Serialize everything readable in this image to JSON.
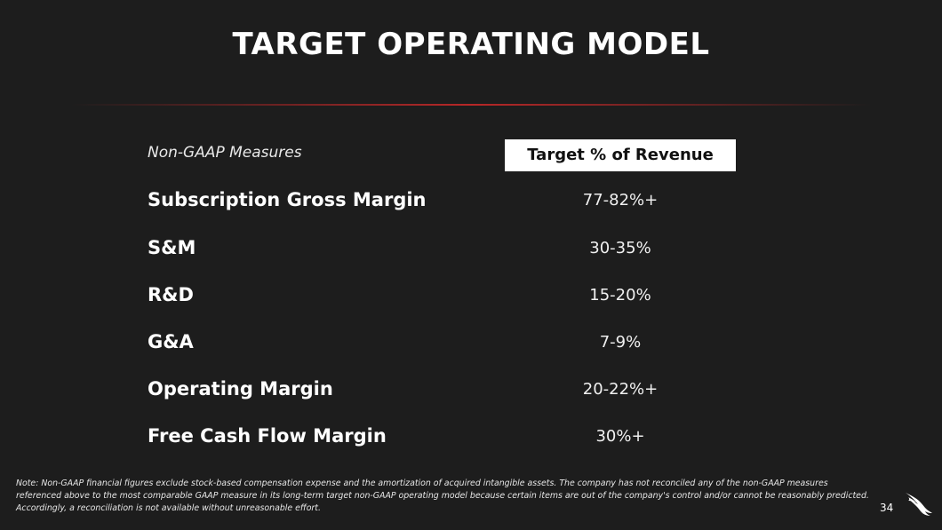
{
  "slide": {
    "title": "TARGET OPERATING MODEL",
    "page_number": "34",
    "logo_icon": "falcon-logo-icon"
  },
  "table": {
    "measures_label": "Non-GAAP Measures",
    "target_header": "Target % of Revenue",
    "rows": [
      {
        "label": "Subscription Gross Margin",
        "value": "77-82%+"
      },
      {
        "label": "S&M",
        "value": "30-35%"
      },
      {
        "label": "R&D",
        "value": "15-20%"
      },
      {
        "label": "G&A",
        "value": "7-9%"
      },
      {
        "label": "Operating Margin",
        "value": "20-22%+"
      },
      {
        "label": "Free Cash Flow Margin",
        "value": "30%+"
      }
    ]
  },
  "footnote": "Note: Non-GAAP financial figures exclude stock-based compensation expense and the amortization of acquired intangible assets. The company has not reconciled any of the non-GAAP measures referenced above to the most comparable GAAP measure in its long-term target non-GAAP operating model because certain items are out of the company's control and/or cannot be reasonably predicted. Accordingly, a reconciliation is not available without unreasonable effort.",
  "colors": {
    "background": "#1d1d1d",
    "divider": "#c82828",
    "header_bg": "#ffffff"
  }
}
